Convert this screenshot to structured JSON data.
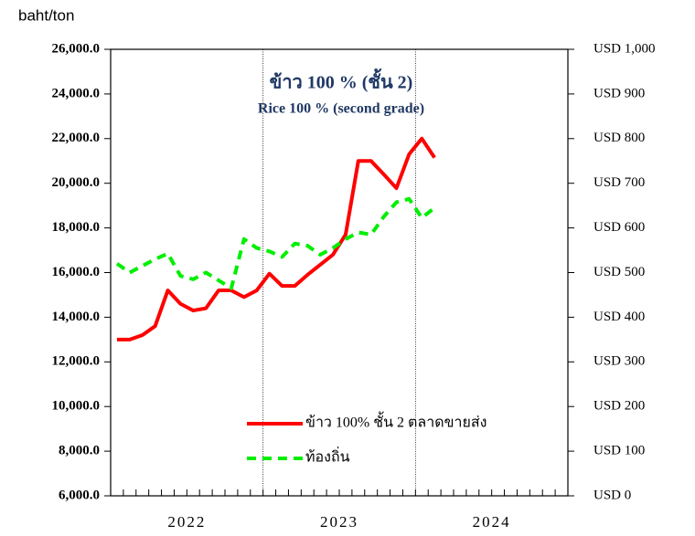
{
  "chart_data": {
    "type": "line",
    "title": "ข้าว  100 % (ชั้น 2)",
    "subtitle": "Rice 100 % (second grade)",
    "y_unit": "baht/ton",
    "categories": [
      null,
      null,
      null,
      null,
      null,
      null,
      null,
      null,
      null,
      null,
      null,
      null,
      null,
      null,
      null,
      null,
      null,
      null,
      null,
      null,
      null,
      null,
      null,
      null,
      null,
      null,
      null,
      null,
      null,
      null,
      null,
      null,
      null,
      null,
      null,
      null
    ],
    "year_labels": [
      "2022",
      "2023",
      "2024"
    ],
    "series": [
      {
        "name": "ข้าว 100% ชั้น 2 ตลาดขายส่ง",
        "color": "#ff0000",
        "dash": false,
        "values": [
          13000,
          13000,
          13200,
          13600,
          15200,
          14600,
          14300,
          14400,
          15200,
          15200,
          14900,
          15200,
          15950,
          15400,
          15400,
          15900,
          16350,
          16800,
          17700,
          21000,
          21000,
          20400,
          19780,
          21300,
          22000,
          21150,
          null,
          null,
          null,
          null,
          null,
          null,
          null,
          null,
          null,
          null
        ]
      },
      {
        "name": "ท้องถิ่น",
        "color": "#00ee00",
        "dash": true,
        "values": [
          16400,
          16000,
          16300,
          16600,
          16850,
          15850,
          15700,
          16000,
          15650,
          15300,
          17500,
          17100,
          16950,
          16700,
          17300,
          17200,
          16800,
          17100,
          17500,
          17800,
          17700,
          18500,
          19150,
          19300,
          18450,
          18900,
          null,
          null,
          null,
          null,
          null,
          null,
          null,
          null,
          null,
          null
        ]
      }
    ],
    "ylim": [
      6000,
      26000
    ],
    "yticks": [
      {
        "value": 6000,
        "label": "6,000.0"
      },
      {
        "value": 8000,
        "label": "8,000.0"
      },
      {
        "value": 10000,
        "label": "10,000.0"
      },
      {
        "value": 12000,
        "label": "12,000.0"
      },
      {
        "value": 14000,
        "label": "14,000.0"
      },
      {
        "value": 16000,
        "label": "16,000.0"
      },
      {
        "value": 18000,
        "label": "18,000.0"
      },
      {
        "value": 20000,
        "label": "20,000.0"
      },
      {
        "value": 22000,
        "label": "22,000.0"
      },
      {
        "value": 24000,
        "label": "24,000.0"
      },
      {
        "value": 26000,
        "label": "26,000.0"
      }
    ],
    "y2lim": [
      0,
      1000
    ],
    "y2ticks": [
      {
        "value": 0,
        "label": "USD 0"
      },
      {
        "value": 100,
        "label": "USD 100"
      },
      {
        "value": 200,
        "label": "USD 200"
      },
      {
        "value": 300,
        "label": "USD 300"
      },
      {
        "value": 400,
        "label": "USD 400"
      },
      {
        "value": 500,
        "label": "USD 500"
      },
      {
        "value": 600,
        "label": "USD 600"
      },
      {
        "value": 700,
        "label": "USD 700"
      },
      {
        "value": 800,
        "label": "USD 800"
      },
      {
        "value": 900,
        "label": "USD 900"
      },
      {
        "value": 1000,
        "label": "USD 1,000"
      }
    ],
    "grid": false
  }
}
